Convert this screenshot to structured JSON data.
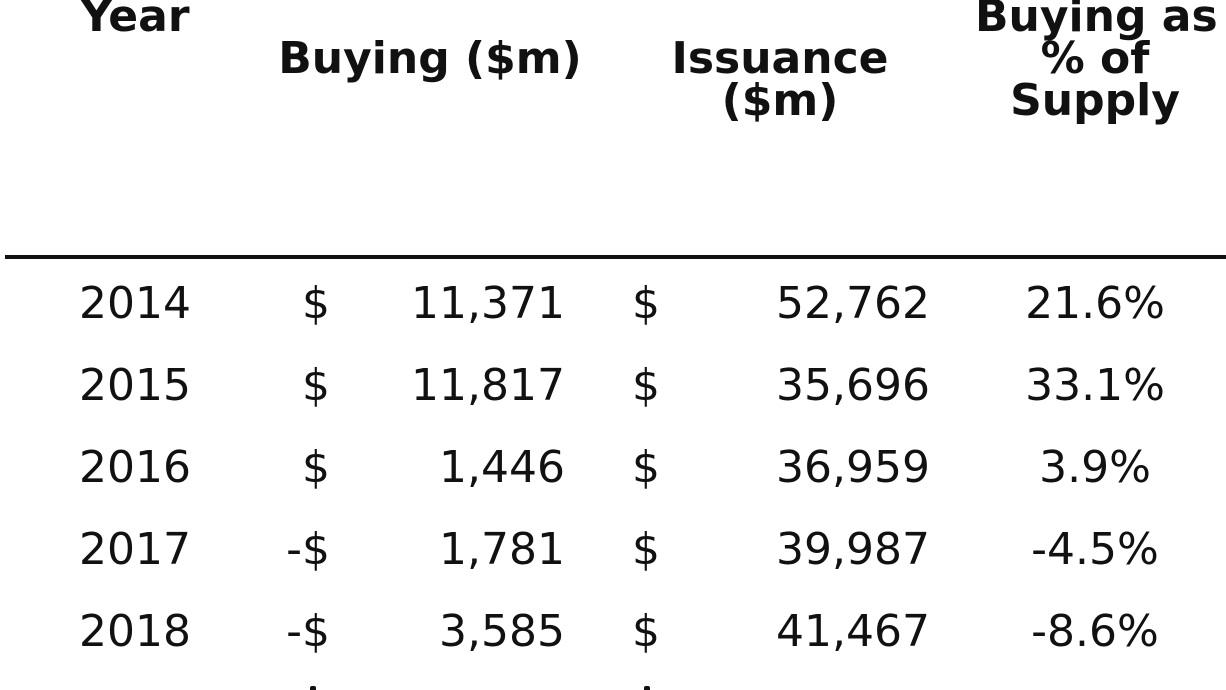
{
  "headers": {
    "year": "Year",
    "buying": "Buying ($m)",
    "issuance_line1": "Issuance",
    "issuance_line2": "($m)",
    "pct_line1": "Buying as",
    "pct_line2": "% of",
    "pct_line3": "Supply"
  },
  "rows": [
    {
      "year": "2014",
      "buying_sign": "$",
      "buying": "11,371",
      "issuance_sign": "$",
      "issuance": "52,762",
      "pct": "21.6%"
    },
    {
      "year": "2015",
      "buying_sign": "$",
      "buying": "11,817",
      "issuance_sign": "$",
      "issuance": "35,696",
      "pct": "33.1%"
    },
    {
      "year": "2016",
      "buying_sign": "$",
      "buying": "1,446",
      "issuance_sign": "$",
      "issuance": "36,959",
      "pct": "3.9%"
    },
    {
      "year": "2017",
      "buying_sign": "-$",
      "buying": "1,781",
      "issuance_sign": "$",
      "issuance": "39,987",
      "pct": "-4.5%"
    },
    {
      "year": "2018",
      "buying_sign": "-$",
      "buying": "3,585",
      "issuance_sign": "$",
      "issuance": "41,467",
      "pct": "-8.6%"
    }
  ]
}
